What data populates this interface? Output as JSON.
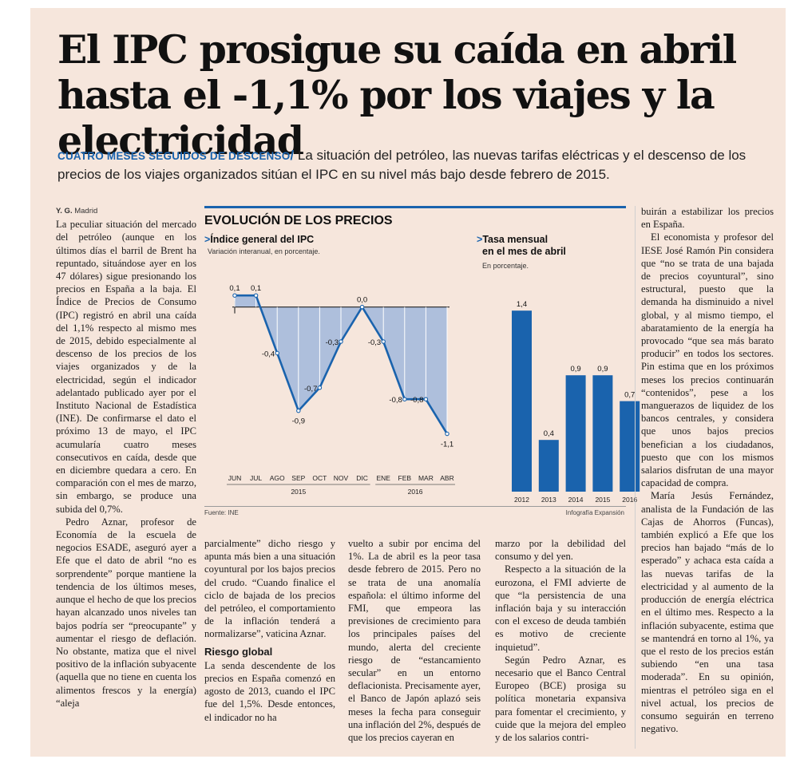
{
  "headline": "El IPC prosigue su caída en abril hasta el -1,1% por los viajes y la electricidad",
  "deck": {
    "kicker": "CUATRO MESES SEGUIDOS DE DESCENSO",
    "slash": "/",
    "text": " La situación del petróleo, las nuevas tarifas eléctricas y el descenso de los precios de los viajes organizados sitúan el IPC en su nivel más bajo desde febrero de 2015."
  },
  "byline": {
    "author": "Y. G.",
    "place": " Madrid"
  },
  "article": {
    "col1_p1": "La peculiar situación del mercado del petróleo (aunque en los últimos días el barril de Brent ha repuntado, situándose ayer en los 47 dólares) sigue presionando los precios en España a la baja. El Índice de Precios de Consumo (IPC) registró en abril una caída del 1,1% respecto al mismo mes de 2015, debido especialmente al descenso de los precios de los viajes organizados y de la electricidad, según el indicador adelantado publicado ayer por el Instituto Nacional de Estadística (INE). De confirmarse el dato el próximo 13 de mayo, el IPC acumularía cuatro meses consecutivos en caída, desde que en diciembre quedara a cero. En comparación con el mes de marzo, sin embargo, se produce una subida del 0,7%.",
    "col1_p2": "Pedro Aznar, profesor de Economía de la escuela de negocios ESADE, aseguró ayer a Efe que el dato de abril “no es sorprendente” porque mantiene la tendencia de los últimos meses, aunque el hecho de que los precios hayan alcanzado unos niveles tan bajos podría ser “preocupante” y aumentar el riesgo de deflación. No obstante, matiza que el nivel positivo de la inflación subyacente (aquella que no tiene en cuenta los alimentos frescos y la energía) “aleja",
    "col2_p1": "parcialmente” dicho riesgo y apunta más bien a una situación coyuntural por los bajos precios del crudo. “Cuando finalice el ciclo de bajada de los precios del petróleo, el comportamiento de la inflación tenderá a normalizarse”, vaticina Aznar.",
    "col2_heading": "Riesgo global",
    "col2_p2": "La senda descendente de los precios en España comenzó en agosto de 2013, cuando el IPC fue del 1,5%. Desde entonces, el indicador no ha",
    "col3_p1": "vuelto a subir por encima del 1%. La de abril es la peor tasa desde febrero de 2015. Pero no se trata de una anomalía española: el último informe del FMI, que empeora las previsiones de crecimiento para los principales países del mundo, alerta del creciente riesgo de “estancamiento secular” en un entorno deflacionista. Precisamente ayer, el Banco de Japón aplazó seis meses la fecha para conseguir una inflación del 2%, después de que los precios cayeran en",
    "col4_p1": "marzo por la debilidad del consumo y del yen.",
    "col4_p2": "Respecto a la situación de la eurozona, el FMI advierte de que “la persistencia de una inflación baja y su interacción con el exceso de deuda también es motivo de creciente inquietud”.",
    "col4_p3": "Según Pedro Aznar, es necesario que el Banco Central Europeo (BCE) prosiga su política monetaria expansiva para fomentar el crecimiento, y cuide que la mejora del empleo y de los salarios contri-",
    "col5_p1": "buirán a estabilizar los precios en España.",
    "col5_p2": "El economista y profesor del IESE José Ramón Pin considera que “no se trata de una bajada de precios coyuntural”, sino estructural, puesto que la demanda ha disminuido a nivel global, y al mismo tiempo, el abaratamiento de la energía ha provocado “que sea más barato producir” en todos los sectores. Pin estima que en los próximos meses los precios continuarán “contenidos”, pese a los manguerazos de liquidez de los bancos centrales, y considera que unos bajos precios benefician a los ciudadanos, puesto que con los mismos salarios disfrutan de una mayor capacidad de compra.",
    "col5_p3": "María Jesús Fernández, analista de la Fundación de las Cajas de Ahorros (Funcas), también explicó a Efe que los precios han bajado “más de lo esperado” y achaca esta caída a las nuevas tarifas de la electricidad y al aumento de la producción de energía eléctrica en el último mes. Respecto a la inflación subyacente, estima que se mantendrá en torno al 1%, ya que el resto de los precios están subiendo “en una tasa moderada”. En su opinión, mientras el petróleo siga en el nivel actual, los precios de consumo seguirán en terreno negativo."
  },
  "graphic": {
    "title": "EVOLUCIÓN DE LOS PRECIOS",
    "left_title": "Índice general del IPC",
    "left_note": "Variación interanual, en porcentaje.",
    "right_title_1": "Tasa mensual",
    "right_title_2": "en el mes de abril",
    "right_note": "En porcentaje.",
    "source": "Fuente: INE",
    "credit": "Infografía Expansión",
    "arrow": ">",
    "accent": "#1a63ad",
    "area_fill": "#aebfdc"
  },
  "chart_data": [
    {
      "type": "area",
      "title": "Índice general del IPC",
      "subtitle": "Variación interanual, en porcentaje.",
      "categories": [
        "JUN",
        "JUL",
        "AGO",
        "SEP",
        "OCT",
        "NOV",
        "DIC",
        "ENE",
        "FEB",
        "MAR",
        "ABR"
      ],
      "values": [
        0.1,
        0.1,
        -0.4,
        -0.9,
        -0.7,
        -0.3,
        0.0,
        -0.3,
        -0.8,
        -0.8,
        -1.1
      ],
      "value_labels": [
        "0,1",
        "0,1",
        "-0,4",
        "-0,9",
        "-0,7",
        "-0,3",
        "0,0",
        "-0,3",
        "-0,8",
        "-0,8",
        "-1,1"
      ],
      "year_groups": [
        {
          "label": "2015",
          "from": 0,
          "to": 6
        },
        {
          "label": "2016",
          "from": 7,
          "to": 10
        }
      ],
      "ylim": [
        -1.2,
        0.15
      ],
      "grid": false
    },
    {
      "type": "bar",
      "title": "Tasa mensual en el mes de abril",
      "subtitle": "En porcentaje.",
      "categories": [
        "2012",
        "2013",
        "2014",
        "2015",
        "2016"
      ],
      "values": [
        1.4,
        0.4,
        0.9,
        0.9,
        0.7
      ],
      "value_labels": [
        "1,4",
        "0,4",
        "0,9",
        "0,9",
        "0,7"
      ],
      "ylim": [
        0,
        1.5
      ],
      "grid": false
    }
  ]
}
